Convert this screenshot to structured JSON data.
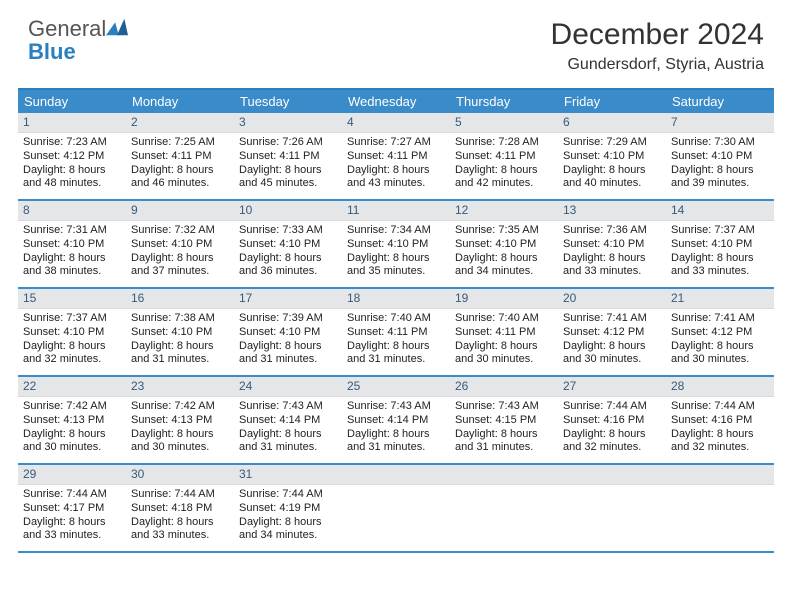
{
  "logo": {
    "text1": "General",
    "text2": "Blue",
    "accent": "#2b7fbf"
  },
  "title": "December 2024",
  "location": "Gundersdorf, Styria, Austria",
  "colors": {
    "header_bg": "#3a8bc9",
    "header_text": "#ffffff",
    "rule": "#3a8bc9",
    "daynum_bg": "#e4e6e8",
    "daynum_text": "#3a5a7a",
    "body_text": "#222222",
    "page_bg": "#ffffff"
  },
  "day_names": [
    "Sunday",
    "Monday",
    "Tuesday",
    "Wednesday",
    "Thursday",
    "Friday",
    "Saturday"
  ],
  "weeks": [
    [
      {
        "n": "1",
        "sr": "Sunrise: 7:23 AM",
        "ss": "Sunset: 4:12 PM",
        "d1": "Daylight: 8 hours",
        "d2": "and 48 minutes."
      },
      {
        "n": "2",
        "sr": "Sunrise: 7:25 AM",
        "ss": "Sunset: 4:11 PM",
        "d1": "Daylight: 8 hours",
        "d2": "and 46 minutes."
      },
      {
        "n": "3",
        "sr": "Sunrise: 7:26 AM",
        "ss": "Sunset: 4:11 PM",
        "d1": "Daylight: 8 hours",
        "d2": "and 45 minutes."
      },
      {
        "n": "4",
        "sr": "Sunrise: 7:27 AM",
        "ss": "Sunset: 4:11 PM",
        "d1": "Daylight: 8 hours",
        "d2": "and 43 minutes."
      },
      {
        "n": "5",
        "sr": "Sunrise: 7:28 AM",
        "ss": "Sunset: 4:11 PM",
        "d1": "Daylight: 8 hours",
        "d2": "and 42 minutes."
      },
      {
        "n": "6",
        "sr": "Sunrise: 7:29 AM",
        "ss": "Sunset: 4:10 PM",
        "d1": "Daylight: 8 hours",
        "d2": "and 40 minutes."
      },
      {
        "n": "7",
        "sr": "Sunrise: 7:30 AM",
        "ss": "Sunset: 4:10 PM",
        "d1": "Daylight: 8 hours",
        "d2": "and 39 minutes."
      }
    ],
    [
      {
        "n": "8",
        "sr": "Sunrise: 7:31 AM",
        "ss": "Sunset: 4:10 PM",
        "d1": "Daylight: 8 hours",
        "d2": "and 38 minutes."
      },
      {
        "n": "9",
        "sr": "Sunrise: 7:32 AM",
        "ss": "Sunset: 4:10 PM",
        "d1": "Daylight: 8 hours",
        "d2": "and 37 minutes."
      },
      {
        "n": "10",
        "sr": "Sunrise: 7:33 AM",
        "ss": "Sunset: 4:10 PM",
        "d1": "Daylight: 8 hours",
        "d2": "and 36 minutes."
      },
      {
        "n": "11",
        "sr": "Sunrise: 7:34 AM",
        "ss": "Sunset: 4:10 PM",
        "d1": "Daylight: 8 hours",
        "d2": "and 35 minutes."
      },
      {
        "n": "12",
        "sr": "Sunrise: 7:35 AM",
        "ss": "Sunset: 4:10 PM",
        "d1": "Daylight: 8 hours",
        "d2": "and 34 minutes."
      },
      {
        "n": "13",
        "sr": "Sunrise: 7:36 AM",
        "ss": "Sunset: 4:10 PM",
        "d1": "Daylight: 8 hours",
        "d2": "and 33 minutes."
      },
      {
        "n": "14",
        "sr": "Sunrise: 7:37 AM",
        "ss": "Sunset: 4:10 PM",
        "d1": "Daylight: 8 hours",
        "d2": "and 33 minutes."
      }
    ],
    [
      {
        "n": "15",
        "sr": "Sunrise: 7:37 AM",
        "ss": "Sunset: 4:10 PM",
        "d1": "Daylight: 8 hours",
        "d2": "and 32 minutes."
      },
      {
        "n": "16",
        "sr": "Sunrise: 7:38 AM",
        "ss": "Sunset: 4:10 PM",
        "d1": "Daylight: 8 hours",
        "d2": "and 31 minutes."
      },
      {
        "n": "17",
        "sr": "Sunrise: 7:39 AM",
        "ss": "Sunset: 4:10 PM",
        "d1": "Daylight: 8 hours",
        "d2": "and 31 minutes."
      },
      {
        "n": "18",
        "sr": "Sunrise: 7:40 AM",
        "ss": "Sunset: 4:11 PM",
        "d1": "Daylight: 8 hours",
        "d2": "and 31 minutes."
      },
      {
        "n": "19",
        "sr": "Sunrise: 7:40 AM",
        "ss": "Sunset: 4:11 PM",
        "d1": "Daylight: 8 hours",
        "d2": "and 30 minutes."
      },
      {
        "n": "20",
        "sr": "Sunrise: 7:41 AM",
        "ss": "Sunset: 4:12 PM",
        "d1": "Daylight: 8 hours",
        "d2": "and 30 minutes."
      },
      {
        "n": "21",
        "sr": "Sunrise: 7:41 AM",
        "ss": "Sunset: 4:12 PM",
        "d1": "Daylight: 8 hours",
        "d2": "and 30 minutes."
      }
    ],
    [
      {
        "n": "22",
        "sr": "Sunrise: 7:42 AM",
        "ss": "Sunset: 4:13 PM",
        "d1": "Daylight: 8 hours",
        "d2": "and 30 minutes."
      },
      {
        "n": "23",
        "sr": "Sunrise: 7:42 AM",
        "ss": "Sunset: 4:13 PM",
        "d1": "Daylight: 8 hours",
        "d2": "and 30 minutes."
      },
      {
        "n": "24",
        "sr": "Sunrise: 7:43 AM",
        "ss": "Sunset: 4:14 PM",
        "d1": "Daylight: 8 hours",
        "d2": "and 31 minutes."
      },
      {
        "n": "25",
        "sr": "Sunrise: 7:43 AM",
        "ss": "Sunset: 4:14 PM",
        "d1": "Daylight: 8 hours",
        "d2": "and 31 minutes."
      },
      {
        "n": "26",
        "sr": "Sunrise: 7:43 AM",
        "ss": "Sunset: 4:15 PM",
        "d1": "Daylight: 8 hours",
        "d2": "and 31 minutes."
      },
      {
        "n": "27",
        "sr": "Sunrise: 7:44 AM",
        "ss": "Sunset: 4:16 PM",
        "d1": "Daylight: 8 hours",
        "d2": "and 32 minutes."
      },
      {
        "n": "28",
        "sr": "Sunrise: 7:44 AM",
        "ss": "Sunset: 4:16 PM",
        "d1": "Daylight: 8 hours",
        "d2": "and 32 minutes."
      }
    ],
    [
      {
        "n": "29",
        "sr": "Sunrise: 7:44 AM",
        "ss": "Sunset: 4:17 PM",
        "d1": "Daylight: 8 hours",
        "d2": "and 33 minutes."
      },
      {
        "n": "30",
        "sr": "Sunrise: 7:44 AM",
        "ss": "Sunset: 4:18 PM",
        "d1": "Daylight: 8 hours",
        "d2": "and 33 minutes."
      },
      {
        "n": "31",
        "sr": "Sunrise: 7:44 AM",
        "ss": "Sunset: 4:19 PM",
        "d1": "Daylight: 8 hours",
        "d2": "and 34 minutes."
      },
      {
        "empty": true
      },
      {
        "empty": true
      },
      {
        "empty": true
      },
      {
        "empty": true
      }
    ]
  ]
}
